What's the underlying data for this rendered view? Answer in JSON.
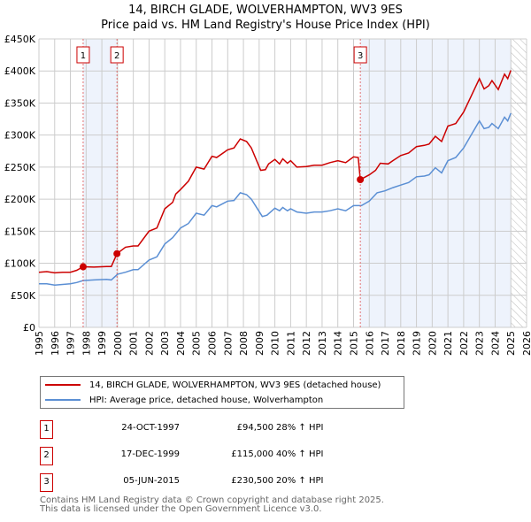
{
  "title": "14, BIRCH GLADE, WOLVERHAMPTON, WV3 9ES",
  "subtitle": "Price paid vs. HM Land Registry's House Price Index (HPI)",
  "chart_data": {
    "type": "line",
    "title": "14, BIRCH GLADE, WOLVERHAMPTON, WV3 9ES — Price paid vs. HM Land Registry's House Price Index (HPI)",
    "xlim": [
      1995,
      2026
    ],
    "ylim": [
      0,
      450000
    ],
    "x_ticks": [
      "1995",
      "1996",
      "1997",
      "1998",
      "1999",
      "2000",
      "2001",
      "2002",
      "2003",
      "2004",
      "2005",
      "2006",
      "2007",
      "2008",
      "2009",
      "2010",
      "2011",
      "2012",
      "2013",
      "2014",
      "2015",
      "2016",
      "2017",
      "2018",
      "2019",
      "2020",
      "2021",
      "2022",
      "2023",
      "2024",
      "2025",
      "2026"
    ],
    "y_ticks": [
      {
        "v": 0,
        "label": "£0"
      },
      {
        "v": 50000,
        "label": "£50K"
      },
      {
        "v": 100000,
        "label": "£100K"
      },
      {
        "v": 150000,
        "label": "£150K"
      },
      {
        "v": 200000,
        "label": "£200K"
      },
      {
        "v": 250000,
        "label": "£250K"
      },
      {
        "v": 300000,
        "label": "£300K"
      },
      {
        "v": 350000,
        "label": "£350K"
      },
      {
        "v": 400000,
        "label": "£400K"
      },
      {
        "v": 450000,
        "label": "£450K"
      }
    ],
    "grid": true,
    "series": [
      {
        "name": "14, BIRCH GLADE, WOLVERHAMPTON, WV3 9ES (detached house)",
        "color": "#cc0000",
        "x": [
          1995,
          1995.5,
          1996,
          1996.5,
          1997,
          1997.4,
          1997.81,
          1998.5,
          1999.3,
          1999.6,
          1999.96,
          2000.5,
          2001,
          2001.3,
          2002,
          2002.5,
          2003,
          2003.5,
          2003.7,
          2004,
          2004.5,
          2005,
          2005.5,
          2006,
          2006.3,
          2007,
          2007.4,
          2007.8,
          2008.2,
          2008.5,
          2009.1,
          2009.4,
          2009.6,
          2010,
          2010.3,
          2010.5,
          2010.8,
          2011,
          2011.4,
          2012,
          2012.5,
          2013,
          2013.5,
          2014,
          2014.5,
          2015,
          2015.3,
          2015.43,
          2016,
          2016.4,
          2016.7,
          2017.2,
          2017.5,
          2018,
          2018.5,
          2019,
          2019.5,
          2019.8,
          2020.2,
          2020.6,
          2021,
          2021.5,
          2022,
          2022.5,
          2023,
          2023.3,
          2023.6,
          2023.8,
          2024.2,
          2024.6,
          2024.8,
          2025
        ],
        "y": [
          86000,
          87000,
          85000,
          86000,
          86000,
          89000,
          94500,
          94000,
          95000,
          95000,
          115000,
          125000,
          127000,
          127000,
          150000,
          155000,
          185000,
          195000,
          208000,
          215000,
          228000,
          250000,
          247000,
          267000,
          265000,
          277000,
          280000,
          294000,
          290000,
          280000,
          245000,
          246000,
          255000,
          262000,
          255000,
          263000,
          256000,
          260000,
          250000,
          251000,
          253000,
          253000,
          257000,
          260000,
          257000,
          266000,
          265000,
          230500,
          238000,
          245000,
          256000,
          255000,
          260000,
          268000,
          272000,
          282000,
          284000,
          286000,
          298000,
          290000,
          314000,
          318000,
          336000,
          362000,
          388000,
          372000,
          377000,
          385000,
          371000,
          395000,
          388000,
          401000
        ]
      },
      {
        "name": "HPI: Average price, detached house, Wolverhampton",
        "color": "#5b8fd4",
        "x": [
          1995,
          1995.5,
          1996,
          1996.5,
          1997,
          1997.4,
          1997.8,
          1998.5,
          1999.3,
          1999.6,
          2000,
          2000.5,
          2001,
          2001.3,
          2002,
          2002.5,
          2003,
          2003.5,
          2004,
          2004.5,
          2005,
          2005.5,
          2006,
          2006.3,
          2007,
          2007.4,
          2007.8,
          2008.2,
          2008.5,
          2009.2,
          2009.5,
          2010,
          2010.3,
          2010.5,
          2010.8,
          2011,
          2011.4,
          2012,
          2012.5,
          2013,
          2013.5,
          2014,
          2014.5,
          2015,
          2015.5,
          2016,
          2016.5,
          2017,
          2017.5,
          2018,
          2018.5,
          2019,
          2019.5,
          2019.8,
          2020.2,
          2020.6,
          2021,
          2021.5,
          2022,
          2022.5,
          2023,
          2023.3,
          2023.6,
          2023.8,
          2024.2,
          2024.6,
          2024.8,
          2025
        ],
        "y": [
          68000,
          68000,
          66000,
          67000,
          68000,
          70000,
          73000,
          74000,
          75000,
          74000,
          83000,
          86000,
          90000,
          90000,
          105000,
          110000,
          130000,
          140000,
          155000,
          162000,
          178000,
          175000,
          190000,
          188000,
          197000,
          198000,
          210000,
          207000,
          200000,
          173000,
          175000,
          186000,
          182000,
          187000,
          182000,
          185000,
          180000,
          178000,
          180000,
          180000,
          182000,
          185000,
          182000,
          190000,
          190000,
          197000,
          210000,
          213000,
          218000,
          222000,
          226000,
          235000,
          236000,
          238000,
          249000,
          241000,
          260000,
          265000,
          280000,
          301000,
          322000,
          310000,
          312000,
          318000,
          310000,
          328000,
          322000,
          334000
        ]
      }
    ],
    "sales": [
      {
        "id": "1",
        "x": 1997.81,
        "y": 94500,
        "date": "24-OCT-1997",
        "price": "£94,500",
        "hpi": "28% ↑ HPI"
      },
      {
        "id": "2",
        "x": 1999.96,
        "y": 115000,
        "date": "17-DEC-1999",
        "price": "£115,000",
        "hpi": "40% ↑ HPI"
      },
      {
        "id": "3",
        "x": 2015.43,
        "y": 230500,
        "date": "05-JUN-2015",
        "price": "£230,500",
        "hpi": "20% ↑ HPI"
      }
    ],
    "shaded_ranges": [
      [
        1997.81,
        1999.96
      ],
      [
        2015.43,
        2025.0
      ]
    ],
    "hatched_range": [
      2025.0,
      2026
    ],
    "legend_placement": "below"
  },
  "legend": {
    "property": "14, BIRCH GLADE, WOLVERHAMPTON, WV3 9ES (detached house)",
    "hpi": "HPI: Average price, detached house, Wolverhampton"
  },
  "footer": {
    "line1": "Contains HM Land Registry data © Crown copyright and database right 2025.",
    "line2": "This data is licensed under the Open Government Licence v3.0."
  }
}
